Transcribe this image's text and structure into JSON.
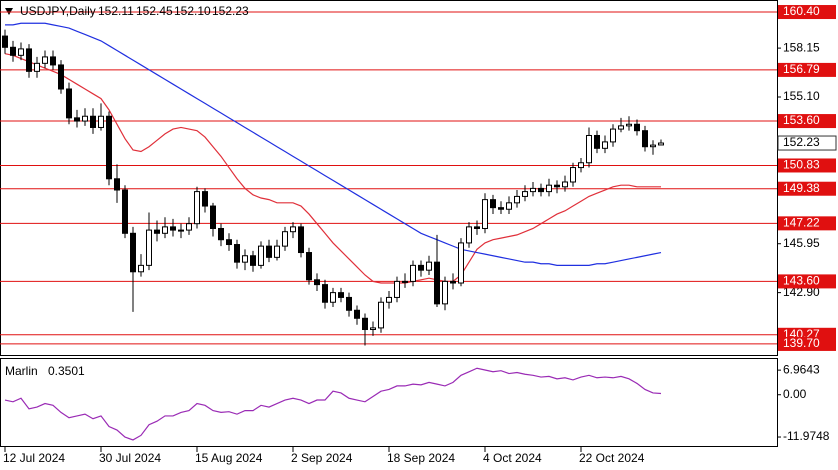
{
  "chart_data": [
    {
      "type": "candlestick",
      "title": "USDJPY,Daily",
      "categories": [
        "12 Jul 2024",
        null,
        null,
        null,
        null,
        null,
        null,
        null,
        null,
        null,
        null,
        null,
        "30 Jul 2024",
        null,
        null,
        null,
        null,
        null,
        null,
        null,
        null,
        null,
        null,
        null,
        "15 Aug 2024",
        null,
        null,
        null,
        null,
        null,
        null,
        null,
        null,
        null,
        null,
        null,
        "2 Sep 2024",
        null,
        null,
        null,
        null,
        null,
        null,
        null,
        null,
        null,
        null,
        null,
        "18 Sep 2024",
        null,
        null,
        null,
        null,
        null,
        null,
        null,
        null,
        null,
        null,
        null,
        "4 Oct 2024",
        null,
        null,
        null,
        null,
        null,
        null,
        null,
        null,
        null,
        null,
        null,
        "22 Oct 2024",
        null,
        null,
        null,
        null,
        null,
        null,
        null,
        null,
        null,
        null
      ],
      "open": [
        158.9,
        158.2,
        157.7,
        158.1,
        156.7,
        157.2,
        157.6,
        157.1,
        155.6,
        153.8,
        153.6,
        153.9,
        153.2,
        153.9,
        150.0,
        149.3,
        146.6,
        144.2,
        144.6,
        146.8,
        146.6,
        147.0,
        146.8,
        146.8,
        147.2,
        149.2,
        148.3,
        146.9,
        146.2,
        145.9,
        144.8,
        145.2,
        144.6,
        145.8,
        145.1,
        145.8,
        146.7,
        147.0,
        145.4,
        143.7,
        143.4,
        142.3,
        142.9,
        142.6,
        141.8,
        141.3,
        140.6,
        140.7,
        142.3,
        142.6,
        143.6,
        143.6,
        144.6,
        144.3,
        144.8,
        142.2,
        143.6,
        143.5,
        146.0,
        147.0,
        146.9,
        148.7,
        148.2,
        148.1,
        148.5,
        148.9,
        149.2,
        149.4,
        149.2,
        149.6,
        149.5,
        149.8,
        150.7,
        151.0,
        152.7,
        151.9,
        152.3,
        153.1,
        153.3,
        153.4,
        153.0,
        152.0,
        152.11
      ],
      "high": [
        159.3,
        158.6,
        158.5,
        158.4,
        157.6,
        158.0,
        158.0,
        157.4,
        156.0,
        154.3,
        154.4,
        154.4,
        154.7,
        154.2,
        150.9,
        149.6,
        147.0,
        145.3,
        147.9,
        147.4,
        147.6,
        147.5,
        147.2,
        147.6,
        149.5,
        149.4,
        148.5,
        147.2,
        146.6,
        146.2,
        145.6,
        145.5,
        146.1,
        146.2,
        146.2,
        147.0,
        147.3,
        147.2,
        145.7,
        144.1,
        143.7,
        143.2,
        143.2,
        142.9,
        142.1,
        141.6,
        141.1,
        142.6,
        143.0,
        143.9,
        144.1,
        144.9,
        144.9,
        145.2,
        146.5,
        143.9,
        144.1,
        146.3,
        147.3,
        147.4,
        149.1,
        149.0,
        148.6,
        148.9,
        149.3,
        149.6,
        149.8,
        149.7,
        150.0,
        149.9,
        150.2,
        151.0,
        151.3,
        153.2,
        153.0,
        152.7,
        153.4,
        153.8,
        153.9,
        153.7,
        153.3,
        152.4,
        152.45
      ],
      "low": [
        157.8,
        157.3,
        157.4,
        156.3,
        156.3,
        156.9,
        156.8,
        155.3,
        153.4,
        153.2,
        153.3,
        152.8,
        153.0,
        149.6,
        148.5,
        146.3,
        141.7,
        143.9,
        144.3,
        146.1,
        146.3,
        146.4,
        146.3,
        146.5,
        146.9,
        147.9,
        146.4,
        145.8,
        145.5,
        144.4,
        144.3,
        144.2,
        144.4,
        144.8,
        144.9,
        145.5,
        146.3,
        145.1,
        143.4,
        143.0,
        141.9,
        142.0,
        142.3,
        141.4,
        140.9,
        139.6,
        140.2,
        140.4,
        141.9,
        142.3,
        143.2,
        143.3,
        143.9,
        144.0,
        142.0,
        141.8,
        143.1,
        143.3,
        145.7,
        146.5,
        146.6,
        147.8,
        147.8,
        147.8,
        148.2,
        148.6,
        148.9,
        148.9,
        148.9,
        149.1,
        149.2,
        149.5,
        150.4,
        150.7,
        151.6,
        151.6,
        152.0,
        152.9,
        153.0,
        152.7,
        151.7,
        151.5,
        {
          "value": 152.1,
          "label": "152.10"
        }
      ],
      "close": [
        158.2,
        157.7,
        158.1,
        156.7,
        157.2,
        157.6,
        157.1,
        155.6,
        153.8,
        153.6,
        153.9,
        153.2,
        153.9,
        150.0,
        149.3,
        146.6,
        144.2,
        144.6,
        146.8,
        146.6,
        147.0,
        146.8,
        146.8,
        147.2,
        149.2,
        148.3,
        146.9,
        146.2,
        145.9,
        144.8,
        145.2,
        144.6,
        145.8,
        145.1,
        145.8,
        146.7,
        147.0,
        145.4,
        143.7,
        143.4,
        142.3,
        142.9,
        142.6,
        141.8,
        141.3,
        140.6,
        140.7,
        142.3,
        142.6,
        143.6,
        143.6,
        144.6,
        144.3,
        144.8,
        142.2,
        143.6,
        143.5,
        146.0,
        147.0,
        146.9,
        148.7,
        148.2,
        148.1,
        148.5,
        148.9,
        149.2,
        149.4,
        149.2,
        149.6,
        149.5,
        149.8,
        150.7,
        151.0,
        152.7,
        151.9,
        152.3,
        153.1,
        153.3,
        153.4,
        153.0,
        152.0,
        152.1,
        152.23
      ],
      "lines": [
        {
          "color": "#e0303a",
          "values": [
            157.8,
            157.7,
            157.5,
            157.3,
            157.1,
            156.9,
            156.7,
            156.5,
            156.2,
            155.9,
            155.6,
            155.3,
            155.0,
            154.3,
            153.4,
            152.5,
            151.8,
            151.7,
            152.0,
            152.4,
            152.8,
            153.1,
            153.2,
            153.1,
            153.0,
            152.6,
            152.0,
            151.4,
            150.7,
            150.0,
            149.4,
            149.0,
            148.8,
            148.7,
            148.5,
            148.5,
            148.5,
            148.3,
            147.8,
            147.2,
            146.6,
            146.0,
            145.5,
            145.0,
            144.5,
            144.0,
            143.6,
            143.5,
            143.5,
            143.5,
            143.5,
            143.6,
            143.7,
            143.8,
            143.7,
            143.6,
            143.6,
            144.0,
            144.8,
            145.6,
            146.0,
            146.2,
            146.3,
            146.4,
            146.5,
            146.7,
            146.9,
            147.2,
            147.5,
            147.8,
            148.0,
            148.3,
            148.6,
            148.9,
            149.1,
            149.3,
            149.5,
            149.6,
            149.6,
            149.5,
            149.5,
            149.5,
            149.5
          ]
        },
        {
          "color": "#2030e0",
          "values": [
            159.6,
            159.6,
            159.7,
            159.7,
            159.7,
            159.7,
            159.6,
            159.5,
            159.4,
            159.2,
            159.0,
            158.8,
            158.6,
            158.3,
            158.0,
            157.7,
            157.4,
            157.1,
            156.8,
            156.5,
            156.2,
            155.9,
            155.6,
            155.3,
            155.0,
            154.7,
            154.4,
            154.1,
            153.8,
            153.5,
            153.2,
            152.9,
            152.6,
            152.3,
            152.0,
            151.7,
            151.4,
            151.1,
            150.8,
            150.5,
            150.2,
            149.9,
            149.6,
            149.3,
            149.0,
            148.7,
            148.4,
            148.1,
            147.8,
            147.5,
            147.2,
            146.9,
            146.6,
            146.4,
            146.2,
            146.0,
            145.8,
            145.6,
            145.5,
            145.4,
            145.3,
            145.2,
            145.1,
            145.0,
            144.9,
            144.8,
            144.8,
            144.7,
            144.7,
            144.6,
            144.6,
            144.6,
            144.6,
            144.6,
            144.7,
            144.7,
            144.8,
            144.9,
            145.0,
            145.1,
            145.2,
            145.3,
            145.4
          ]
        }
      ],
      "levels": [
        {
          "value": 160.4,
          "label": "160.40"
        },
        156.79,
        {
          "value": 153.6,
          "label": "153.60"
        },
        150.83,
        149.38,
        147.22,
        {
          "value": 143.6,
          "label": "143.60"
        },
        140.27,
        {
          "value": 139.7,
          "label": "139.70"
        }
      ],
      "level_color": "#e01010",
      "ylim": [
        139.01,
        161.15
      ],
      "yticks": [
        158.15,
        {
          "value": 155.1,
          "label": "155.10"
        },
        145.95,
        {
          "value": 142.9,
          "label": "142.90"
        }
      ]
    },
    {
      "type": "line",
      "title": "Marlin",
      "color": "#9a2bb5",
      "values": [
        -1.5,
        -2.0,
        -1.0,
        -4.0,
        -3.5,
        -2.5,
        -3.0,
        -5.0,
        -6.5,
        -6.0,
        -5.5,
        -6.8,
        -6.0,
        -9.0,
        -10.0,
        -12.0,
        -12.8,
        -11.5,
        -8.5,
        -7.5,
        -6.0,
        -6.0,
        -5.0,
        -4.5,
        -2.5,
        -3.0,
        -4.5,
        -5.0,
        -4.8,
        -5.5,
        -4.5,
        -4.5,
        -3.0,
        -3.5,
        -2.5,
        -1.5,
        -1.0,
        -1.5,
        -2.5,
        -1.5,
        -1.5,
        1.0,
        0.5,
        -1.0,
        -1.5,
        -2.0,
        -0.5,
        1.0,
        1.5,
        2.5,
        2.5,
        3.0,
        2.8,
        3.5,
        3.0,
        2.5,
        3.5,
        5.5,
        6.5,
        7.5,
        7.0,
        6.5,
        6.8,
        6.0,
        6.3,
        5.8,
        5.5,
        5.0,
        5.2,
        4.5,
        4.8,
        4.2,
        5.0,
        5.5,
        4.8,
        5.0,
        4.8,
        5.2,
        4.5,
        3.2,
        1.5,
        0.5,
        0.3501
      ],
      "ylim": [
        -14.8,
        10.4
      ],
      "yticks": [
        6.9643,
        {
          "value": 0,
          "label": "0.00"
        },
        -11.9748
      ]
    }
  ]
}
